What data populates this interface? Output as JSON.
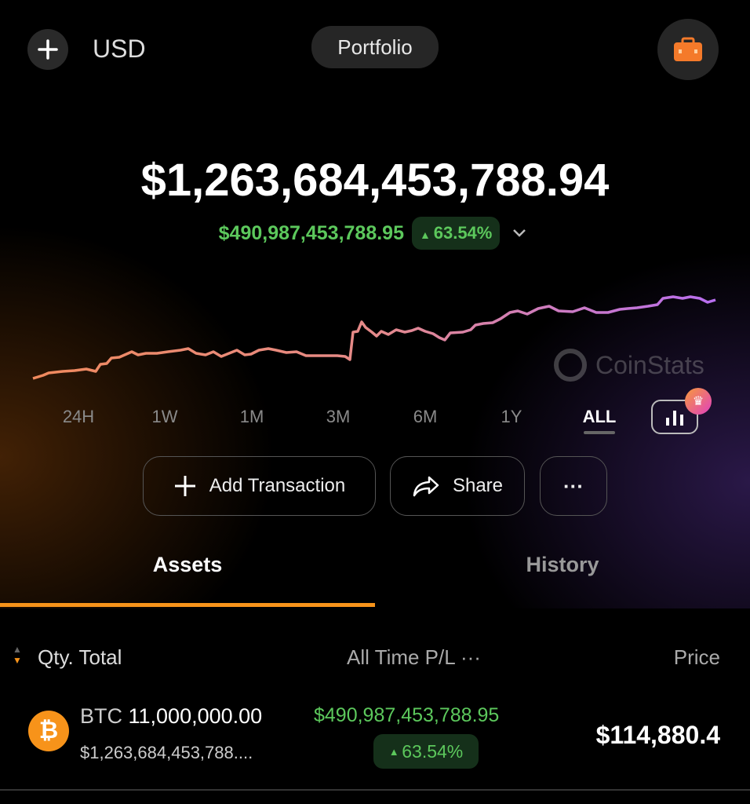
{
  "header": {
    "currency": "USD",
    "title": "Portfolio",
    "add_icon": "plus-icon",
    "wallet_icon": "briefcase-icon"
  },
  "summary": {
    "total": "$1,263,684,453,788.94",
    "pl": "$490,987,453,788.95",
    "pl_percent": "63.54%",
    "up_color": "#5cc85c"
  },
  "chart": {
    "watermark": "CoinStats",
    "line_colors": [
      "#f08a5d",
      "#b86ef0"
    ]
  },
  "ranges": [
    "24H",
    "1W",
    "1M",
    "3M",
    "6M",
    "1Y",
    "ALL"
  ],
  "selected_range": "ALL",
  "actions": {
    "add": "Add Transaction",
    "share": "Share",
    "more": "···"
  },
  "tabs": {
    "assets": "Assets",
    "history": "History",
    "active": "Assets",
    "accent": "#f7931a"
  },
  "columns": {
    "qty": "Qty. Total",
    "pl": "All Time P/L",
    "pl_more": "···",
    "price": "Price"
  },
  "assets": [
    {
      "symbol": "BTC",
      "qty": "11,000,000.00",
      "value": "$1,263,684,453,788....",
      "pl": "$490,987,453,788.95",
      "pl_percent": "63.54%",
      "price": "$114,880.4"
    }
  ]
}
